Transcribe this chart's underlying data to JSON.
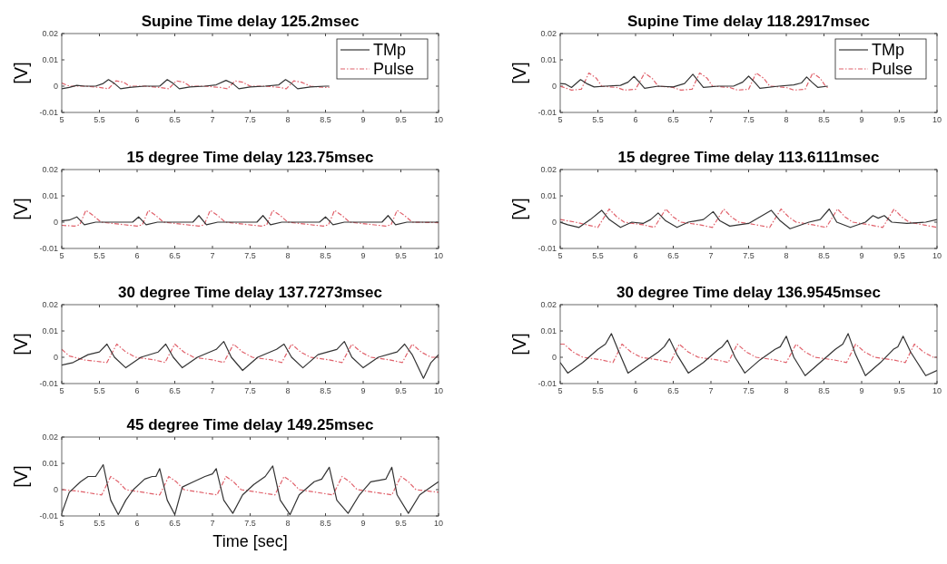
{
  "chart_data": [
    {
      "type": "line",
      "title": "Supine   Time delay 125.2msec",
      "ylabel": "[V]",
      "xlim": [
        5,
        10
      ],
      "ylim": [
        -0.01,
        0.02
      ],
      "xticks": [
        5,
        5.5,
        6,
        6.5,
        7,
        7.5,
        8,
        8.5,
        9,
        9.5,
        10
      ],
      "yticks": [
        -0.01,
        0,
        0.01,
        0.02
      ],
      "grid": false,
      "legend": "top right",
      "series": [
        {
          "name": "TMp",
          "color": "#333333",
          "line_style": "solid",
          "x": [
            5,
            5.1,
            5.2,
            5.3,
            5.45,
            5.55,
            5.62,
            5.7,
            5.78,
            5.9,
            6.1,
            6.3,
            6.4,
            6.48,
            6.56,
            6.7,
            6.9,
            7.05,
            7.18,
            7.27,
            7.35,
            7.5,
            7.7,
            7.88,
            7.97,
            8.05,
            8.13,
            8.3,
            8.5,
            8.55
          ],
          "values": [
            -0.001,
            -0.0005,
            0.0003,
            0,
            0,
            0.001,
            0.0025,
            0.001,
            -0.001,
            -0.0005,
            0,
            0,
            0.0025,
            0.001,
            -0.001,
            -0.0003,
            0,
            0.0005,
            0.0022,
            0.001,
            -0.001,
            -0.0003,
            0,
            0.0005,
            0.0025,
            0.001,
            -0.001,
            -0.0003,
            0,
            0
          ]
        },
        {
          "name": "Pulse",
          "color": "#e0606a",
          "line_style": "dashed",
          "x": [
            5,
            5.1,
            5.3,
            5.5,
            5.62,
            5.72,
            5.82,
            5.9,
            6.1,
            6.3,
            6.42,
            6.52,
            6.62,
            6.7,
            6.9,
            7.1,
            7.2,
            7.3,
            7.4,
            7.5,
            7.7,
            7.9,
            7.98,
            8.08,
            8.18,
            8.3,
            8.5,
            8.55
          ],
          "values": [
            0.0012,
            0,
            0,
            -0.0005,
            -0.001,
            0.002,
            0.0015,
            0,
            0,
            -0.0005,
            -0.001,
            0.002,
            0.0015,
            0,
            0,
            -0.0005,
            -0.001,
            0.002,
            0.0015,
            0,
            0,
            -0.0005,
            -0.001,
            0.002,
            0.0015,
            0,
            -0.0005,
            -0.0005
          ]
        }
      ]
    },
    {
      "type": "line",
      "title": "Supine   Time delay 118.2917msec",
      "ylabel": "[V]",
      "xlim": [
        5,
        10
      ],
      "ylim": [
        -0.01,
        0.02
      ],
      "xticks": [
        5,
        5.5,
        6,
        6.5,
        7,
        7.5,
        8,
        8.5,
        9,
        9.5,
        10
      ],
      "yticks": [
        -0.01,
        0,
        0.01,
        0.02
      ],
      "grid": false,
      "legend": "top right",
      "series": [
        {
          "name": "TMp",
          "color": "#333333",
          "line_style": "solid",
          "x": [
            5,
            5.07,
            5.15,
            5.27,
            5.35,
            5.45,
            5.6,
            5.8,
            5.9,
            5.98,
            6.05,
            6.12,
            6.3,
            6.5,
            6.65,
            6.76,
            6.83,
            6.9,
            7.1,
            7.3,
            7.42,
            7.5,
            7.58,
            7.65,
            7.9,
            8.1,
            8.2,
            8.27,
            8.34,
            8.42,
            8.55
          ],
          "values": [
            0.001,
            0.0008,
            -0.0005,
            0.0025,
            0.001,
            -0.0003,
            0,
            0.0003,
            0.0015,
            0.0037,
            0.0015,
            -0.0008,
            0,
            -0.0003,
            0.001,
            0.0045,
            0.002,
            -0.0005,
            0,
            0,
            0.0015,
            0.0038,
            0.0015,
            -0.0008,
            0,
            0.0005,
            0.0012,
            0.0035,
            0.0015,
            -0.0005,
            0
          ]
        },
        {
          "name": "Pulse",
          "color": "#e0606a",
          "line_style": "dashed",
          "x": [
            5,
            5.15,
            5.28,
            5.38,
            5.48,
            5.55,
            5.75,
            5.85,
            6,
            6.12,
            6.22,
            6.3,
            6.5,
            6.6,
            6.75,
            6.85,
            6.95,
            7.02,
            7.25,
            7.35,
            7.5,
            7.6,
            7.7,
            7.78,
            8,
            8.1,
            8.25,
            8.35,
            8.45,
            8.52,
            8.55
          ],
          "values": [
            0,
            -0.0015,
            -0.0012,
            0.005,
            0.003,
            0,
            -0.0005,
            -0.0015,
            -0.0012,
            0.005,
            0.003,
            0,
            -0.0005,
            -0.0015,
            -0.0012,
            0.005,
            0.003,
            0,
            -0.0005,
            -0.0015,
            -0.0012,
            0.005,
            0.003,
            0,
            -0.0005,
            -0.0015,
            -0.0012,
            0.005,
            0.003,
            0,
            -0.0005
          ]
        }
      ]
    },
    {
      "type": "line",
      "title": "15 degree  Time delay 123.75msec",
      "ylabel": "[V]",
      "xlim": [
        5,
        10
      ],
      "ylim": [
        -0.01,
        0.02
      ],
      "xticks": [
        5,
        5.5,
        6,
        6.5,
        7,
        7.5,
        8,
        8.5,
        9,
        9.5,
        10
      ],
      "yticks": [
        -0.01,
        0,
        0.01,
        0.02
      ],
      "grid": false,
      "series": [
        {
          "color": "#333333",
          "line_style": "solid",
          "x": [
            5,
            5.1,
            5.2,
            5.3,
            5.45,
            5.94,
            6.02,
            6.12,
            6.27,
            6.74,
            6.82,
            6.92,
            7.07,
            7.59,
            7.67,
            7.77,
            7.92,
            8.42,
            8.5,
            8.6,
            8.75,
            9.25,
            9.33,
            9.43,
            9.58,
            10
          ],
          "values": [
            0.0005,
            0.0008,
            0.002,
            -0.001,
            0,
            0,
            0.002,
            -0.001,
            0,
            0,
            0.0025,
            -0.001,
            0,
            0,
            0.0025,
            -0.001,
            0,
            0,
            0.002,
            -0.001,
            0,
            0,
            0.0025,
            -0.001,
            0,
            0
          ]
        },
        {
          "color": "#e0606a",
          "line_style": "dashed",
          "x": [
            5,
            5.17,
            5.24,
            5.32,
            5.42,
            5.52,
            6,
            6.07,
            6.15,
            6.25,
            6.35,
            6.82,
            6.89,
            6.97,
            7.07,
            7.17,
            7.65,
            7.72,
            7.8,
            7.9,
            8,
            8.47,
            8.54,
            8.62,
            8.72,
            8.82,
            9.3,
            9.37,
            9.45,
            9.55,
            9.65,
            10
          ],
          "values": [
            -0.0012,
            -0.0015,
            -0.001,
            0.0045,
            0.0025,
            0,
            -0.0015,
            -0.001,
            0.0045,
            0.0025,
            0,
            -0.0015,
            -0.001,
            0.0045,
            0.0025,
            0,
            -0.0015,
            -0.001,
            0.0045,
            0.0025,
            0,
            -0.0015,
            -0.001,
            0.0045,
            0.0025,
            0,
            -0.0015,
            -0.001,
            0.0045,
            0.0025,
            0,
            -0.0002
          ]
        }
      ]
    },
    {
      "type": "line",
      "title": "15 degree Time delay 113.6111msec",
      "ylabel": "[V]",
      "xlim": [
        5,
        10
      ],
      "ylim": [
        -0.01,
        0.02
      ],
      "xticks": [
        5,
        5.5,
        6,
        6.5,
        7,
        7.5,
        8,
        8.5,
        9,
        9.5,
        10
      ],
      "yticks": [
        -0.01,
        0,
        0.01,
        0.02
      ],
      "grid": false,
      "series": [
        {
          "color": "#333333",
          "line_style": "solid",
          "x": [
            5,
            5.1,
            5.25,
            5.4,
            5.55,
            5.65,
            5.8,
            5.95,
            6.1,
            6.2,
            6.3,
            6.4,
            6.55,
            6.7,
            6.9,
            7.03,
            7.12,
            7.25,
            7.5,
            7.65,
            7.8,
            7.92,
            8.05,
            8.3,
            8.45,
            8.57,
            8.67,
            8.85,
            9.05,
            9.15,
            9.22,
            9.3,
            9.4,
            9.6,
            9.85,
            10
          ],
          "values": [
            0,
            -0.001,
            -0.002,
            0.001,
            0.0045,
            0.001,
            -0.002,
            0,
            -0.0005,
            0.001,
            0.0035,
            0.0005,
            -0.002,
            0,
            0.001,
            0.004,
            0.0005,
            -0.0015,
            -0.0005,
            0.002,
            0.0045,
            0.0005,
            -0.0025,
            0,
            0.001,
            0.005,
            0,
            -0.002,
            0,
            0.0025,
            0.0015,
            0.0025,
            0,
            -0.0005,
            0,
            0.001
          ]
        },
        {
          "color": "#e0606a",
          "line_style": "dashed",
          "x": [
            5,
            5.2,
            5.5,
            5.65,
            5.75,
            5.85,
            6.1,
            6.25,
            6.4,
            6.5,
            6.6,
            6.85,
            7.02,
            7.17,
            7.27,
            7.37,
            7.6,
            7.78,
            7.93,
            8.03,
            8.13,
            8.35,
            8.53,
            8.68,
            8.78,
            8.88,
            9.1,
            9.28,
            9.43,
            9.53,
            9.63,
            10
          ],
          "values": [
            0.001,
            0,
            -0.002,
            0.005,
            0.002,
            0,
            -0.001,
            -0.002,
            0.005,
            0.002,
            0,
            -0.001,
            -0.002,
            0.005,
            0.002,
            0,
            -0.001,
            -0.002,
            0.005,
            0.002,
            0,
            -0.001,
            -0.002,
            0.005,
            0.002,
            0,
            -0.001,
            -0.002,
            0.005,
            0.002,
            0,
            -0.002
          ]
        }
      ]
    },
    {
      "type": "line",
      "title": "30 degree  Time delay 137.7273msec",
      "ylabel": "[V]",
      "xlim": [
        5,
        10
      ],
      "ylim": [
        -0.01,
        0.02
      ],
      "xticks": [
        5,
        5.5,
        6,
        6.5,
        7,
        7.5,
        8,
        8.5,
        9,
        9.5,
        10
      ],
      "yticks": [
        -0.01,
        0,
        0.01,
        0.02
      ],
      "grid": false,
      "series": [
        {
          "color": "#333333",
          "line_style": "solid",
          "x": [
            5,
            5.15,
            5.35,
            5.5,
            5.6,
            5.7,
            5.85,
            6.05,
            6.28,
            6.38,
            6.48,
            6.6,
            6.8,
            7.05,
            7.15,
            7.25,
            7.4,
            7.6,
            7.85,
            7.95,
            8.05,
            8.2,
            8.4,
            8.65,
            8.75,
            8.85,
            9,
            9.2,
            9.45,
            9.55,
            9.65,
            9.8,
            9.9,
            10
          ],
          "values": [
            -0.003,
            -0.002,
            0.001,
            0.002,
            0.005,
            0,
            -0.004,
            0,
            0.002,
            0.005,
            0,
            -0.004,
            0,
            0.003,
            0.006,
            0,
            -0.005,
            0,
            0.003,
            0.005,
            0,
            -0.004,
            0.001,
            0.003,
            0.006,
            0,
            -0.004,
            0,
            0.002,
            0.005,
            0.001,
            -0.008,
            -0.002,
            0.001
          ]
        },
        {
          "color": "#e0606a",
          "line_style": "dashed",
          "x": [
            5,
            5.1,
            5.3,
            5.6,
            5.73,
            5.85,
            5.98,
            6.23,
            6.37,
            6.5,
            6.62,
            6.75,
            7,
            7.15,
            7.28,
            7.4,
            7.53,
            7.78,
            7.92,
            8.05,
            8.17,
            8.3,
            8.55,
            8.72,
            8.85,
            8.97,
            9.1,
            9.35,
            9.52,
            9.65,
            9.77,
            9.9,
            10
          ],
          "values": [
            0.003,
            0.0005,
            -0.001,
            -0.002,
            0.005,
            0.002,
            0,
            -0.001,
            -0.002,
            0.005,
            0.002,
            0,
            -0.001,
            -0.002,
            0.005,
            0.002,
            0,
            -0.001,
            -0.002,
            0.005,
            0.002,
            0,
            -0.001,
            -0.002,
            0.005,
            0.002,
            0,
            -0.001,
            -0.002,
            0.005,
            0.002,
            0,
            0
          ]
        }
      ]
    },
    {
      "type": "line",
      "title": "30 degree  Time delay 136.9545msec",
      "ylabel": "[V]",
      "xlim": [
        5,
        10
      ],
      "ylim": [
        -0.01,
        0.02
      ],
      "xticks": [
        5,
        5.5,
        6,
        6.5,
        7,
        7.5,
        8,
        8.5,
        9,
        9.5,
        10
      ],
      "yticks": [
        -0.01,
        0,
        0.01,
        0.02
      ],
      "grid": false,
      "series": [
        {
          "color": "#333333",
          "line_style": "solid",
          "x": [
            5,
            5.1,
            5.3,
            5.5,
            5.6,
            5.68,
            5.78,
            5.9,
            6.1,
            6.3,
            6.38,
            6.45,
            6.55,
            6.7,
            6.9,
            7.1,
            7.15,
            7.22,
            7.32,
            7.45,
            7.65,
            7.85,
            7.92,
            8,
            8.1,
            8.25,
            8.45,
            8.65,
            8.75,
            8.82,
            8.92,
            9.05,
            9.25,
            9.42,
            9.48,
            9.55,
            9.65,
            9.85,
            10
          ],
          "values": [
            -0.002,
            -0.006,
            -0.002,
            0.003,
            0.005,
            0.009,
            0.002,
            -0.006,
            -0.002,
            0.002,
            0.004,
            0.007,
            0.001,
            -0.006,
            -0.002,
            0.003,
            0.004,
            0.0065,
            0,
            -0.006,
            -0.001,
            0.003,
            0.004,
            0.008,
            0,
            -0.007,
            -0.002,
            0.003,
            0.005,
            0.009,
            0.001,
            -0.007,
            -0.002,
            0.003,
            0.004,
            0.008,
            0.002,
            -0.007,
            -0.005
          ]
        },
        {
          "color": "#e0606a",
          "line_style": "dashed",
          "x": [
            5,
            5.05,
            5.17,
            5.3,
            5.55,
            5.7,
            5.82,
            5.94,
            6.07,
            6.3,
            6.46,
            6.58,
            6.7,
            6.83,
            7.08,
            7.23,
            7.35,
            7.47,
            7.6,
            7.85,
            8,
            8.13,
            8.25,
            8.38,
            8.63,
            8.8,
            8.92,
            9.04,
            9.17,
            9.42,
            9.58,
            9.7,
            9.82,
            9.95,
            10
          ],
          "values": [
            0.005,
            0.005,
            0.002,
            0,
            -0.001,
            -0.002,
            0.005,
            0.002,
            0,
            -0.001,
            -0.002,
            0.005,
            0.002,
            0,
            -0.001,
            -0.002,
            0.005,
            0.002,
            0,
            -0.001,
            -0.002,
            0.005,
            0.002,
            0,
            -0.001,
            -0.002,
            0.005,
            0.002,
            0,
            -0.001,
            -0.002,
            0.005,
            0.002,
            0,
            0
          ]
        }
      ]
    },
    {
      "type": "line",
      "title": "45 degree  Time delay 149.25msec",
      "xlabel": "Time [sec]",
      "ylabel": "[V]",
      "xlim": [
        5,
        10
      ],
      "ylim": [
        -0.01,
        0.02
      ],
      "xticks": [
        5,
        5.5,
        6,
        6.5,
        7,
        7.5,
        8,
        8.5,
        9,
        9.5,
        10
      ],
      "yticks": [
        -0.01,
        0,
        0.01,
        0.02
      ],
      "grid": false,
      "series": [
        {
          "color": "#333333",
          "line_style": "solid",
          "x": [
            5,
            5.1,
            5.25,
            5.35,
            5.45,
            5.55,
            5.65,
            5.75,
            5.85,
            5.95,
            6.1,
            6.2,
            6.25,
            6.3,
            6.4,
            6.5,
            6.6,
            6.75,
            6.9,
            7,
            7.05,
            7.15,
            7.27,
            7.4,
            7.55,
            7.7,
            7.8,
            7.9,
            8.03,
            8.15,
            8.35,
            8.45,
            8.55,
            8.65,
            8.8,
            8.95,
            9.1,
            9.3,
            9.38,
            9.45,
            9.6,
            9.75,
            9.9,
            10
          ],
          "values": [
            -0.009,
            -0.001,
            0.003,
            0.005,
            0.005,
            0.0095,
            -0.004,
            -0.0095,
            -0.004,
            0,
            0.004,
            0.005,
            0.005,
            0.008,
            -0.004,
            -0.0095,
            0.001,
            0.003,
            0.005,
            0.006,
            0.008,
            -0.004,
            -0.009,
            -0.002,
            0.002,
            0.005,
            0.009,
            -0.004,
            -0.0095,
            -0.002,
            0.003,
            0.004,
            0.0085,
            -0.004,
            -0.009,
            -0.002,
            0.003,
            0.004,
            0.0085,
            -0.002,
            -0.009,
            -0.002,
            0.001,
            0.003
          ]
        },
        {
          "color": "#e0606a",
          "line_style": "dashed",
          "x": [
            5,
            5.2,
            5.53,
            5.65,
            5.75,
            5.85,
            6.3,
            6.42,
            6.52,
            6.62,
            7.06,
            7.18,
            7.28,
            7.38,
            7.83,
            7.95,
            8.05,
            8.15,
            8.6,
            8.72,
            8.82,
            8.92,
            9.38,
            9.5,
            9.6,
            9.7,
            10
          ],
          "values": [
            0,
            -0.0005,
            -0.002,
            0.005,
            0.003,
            0,
            -0.002,
            0.005,
            0.003,
            0,
            -0.002,
            0.005,
            0.003,
            0,
            -0.002,
            0.005,
            0.003,
            0,
            -0.002,
            0.005,
            0.003,
            0,
            -0.002,
            0.005,
            0.003,
            0,
            -0.001
          ]
        }
      ]
    }
  ]
}
